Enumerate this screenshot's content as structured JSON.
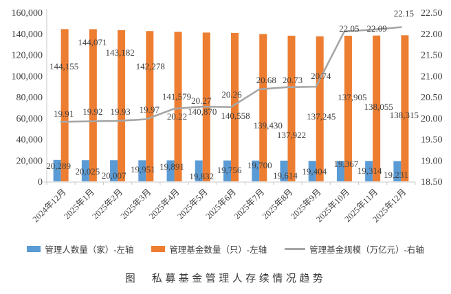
{
  "chart_data": {
    "type": "bar",
    "subtype": "combo-bar-line-dual-axis",
    "title": "",
    "grid": false,
    "legend_position": "bottom",
    "categories": [
      "2024年12月",
      "2025年1月",
      "2025年2月",
      "2025年3月",
      "2025年4月",
      "2025年5月",
      "2025年6月",
      "2025年7月",
      "2025年8月",
      "2025年9月",
      "2025年10月",
      "2025年11月",
      "2025年12月"
    ],
    "series": [
      {
        "name": "管理人数量（家）-左轴",
        "type": "bar",
        "axis": "left",
        "color": "#5B9BD5",
        "values": [
          20289,
          20025,
          20007,
          19951,
          19891,
          19832,
          19756,
          19700,
          19614,
          19404,
          19367,
          19314,
          19231
        ],
        "labels": [
          "20,289",
          "20,025",
          "20,007",
          "19,951",
          "19,891",
          "19,832",
          "19,756",
          "19,700",
          "19,614",
          "19,404",
          "19,367",
          "19,314",
          "19,231"
        ]
      },
      {
        "name": "管理基金数量（只）-左轴",
        "type": "bar",
        "axis": "left",
        "color": "#ED7D31",
        "values": [
          144155,
          144071,
          143182,
          142278,
          141579,
          140870,
          140558,
          139430,
          137922,
          137245,
          137905,
          138055,
          138315
        ],
        "labels": [
          "144,155",
          "144,071",
          "143,182",
          "142,278",
          "141,579",
          "140,870",
          "140,558",
          "139,430",
          "137,922",
          "137,245",
          "137,905",
          "138,055",
          "138,315"
        ]
      },
      {
        "name": "管理基金规模（万亿元）-右轴",
        "type": "line",
        "axis": "right",
        "color": "#A6A6A6",
        "values": [
          19.91,
          19.92,
          19.93,
          19.97,
          20.22,
          20.27,
          20.26,
          20.68,
          20.73,
          20.74,
          22.05,
          22.09,
          22.15
        ],
        "labels": [
          "19.91",
          "19.92",
          "19.93",
          "19.97",
          "20.22",
          "20.27",
          "20.26",
          "20.68",
          "20.73",
          "20.74",
          "22.05",
          "22.09",
          "22.15"
        ]
      }
    ],
    "left_axis": {
      "min": 0,
      "max": 160000,
      "step": 20000,
      "tick_labels": [
        "0",
        "20,000",
        "40,000",
        "60,000",
        "80,000",
        "100,000",
        "120,000",
        "140,000",
        "160,000"
      ]
    },
    "right_axis": {
      "min": 18.5,
      "max": 22.5,
      "step": 0.5,
      "tick_labels": [
        "18.50",
        "19.00",
        "19.50",
        "20.00",
        "20.50",
        "21.00",
        "21.50",
        "22.00",
        "22.50"
      ]
    }
  },
  "caption": {
    "prefix": "图",
    "text": "私募基金管理人存续情况趋势"
  }
}
